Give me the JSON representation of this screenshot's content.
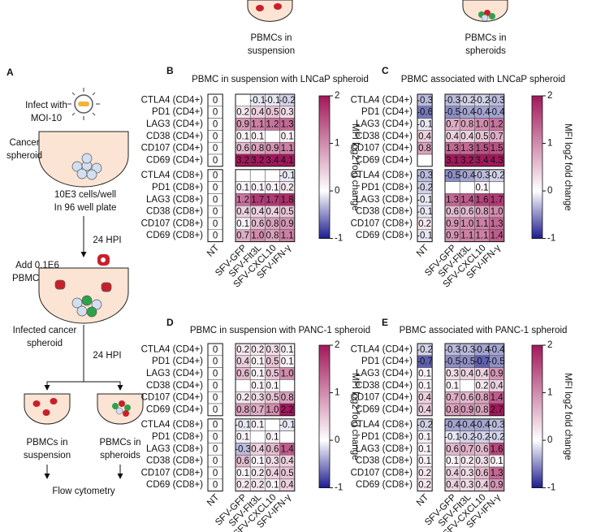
{
  "top_labels": [
    {
      "line1": "PBMCs in",
      "line2": "suspension"
    },
    {
      "line1": "PBMCs in",
      "line2": "spheroids"
    }
  ],
  "panel_a": {
    "letter": "A",
    "infect": [
      "Infect with",
      "MOI-10"
    ],
    "cancer": [
      "Cancer",
      "spheroid"
    ],
    "seed": [
      "10E3 cells/well",
      "In 96 well plate"
    ],
    "hpi1": "24 HPI",
    "add": [
      "Add 0.1E6",
      "PBMCs/well"
    ],
    "infected": [
      "Infected cancer",
      "spheroid"
    ],
    "hpi2": "24 HPI",
    "suspension": [
      "PBMCs in",
      "suspension"
    ],
    "spheroids": [
      "PBMCs in",
      "spheroids"
    ],
    "readout": "Flow cytometry"
  },
  "chart_data": [
    {
      "type": "heatmap",
      "panel": "B",
      "title": "PBMC in suspension with LNCaP spheroid",
      "rows": [
        "CTLA4 (CD4+)",
        "PD1 (CD4+)",
        "LAG3 (CD4+)",
        "CD38 (CD4+)",
        "CD107 (CD4+)",
        "CD69 (CD4+)",
        "CTLA4 (CD8+)",
        "PD1 (CD8+)",
        "LAG3 (CD8+)",
        "CD38 (CD8+)",
        "CD107 (CD8+)",
        "CD69 (CD8+)"
      ],
      "columns": [
        "NT",
        "SFV-GFP",
        "SFV-Flt3L",
        "SFV-CXCL10",
        "SFV-IFN-γ"
      ],
      "values": [
        [
          0,
          null,
          -0.1,
          -0.1,
          -0.2
        ],
        [
          0,
          0.2,
          0.4,
          0.5,
          0.3
        ],
        [
          0,
          0.9,
          1.1,
          1.2,
          1.3
        ],
        [
          0,
          0.1,
          0.1,
          null,
          0.1
        ],
        [
          0,
          0.6,
          0.8,
          0.9,
          1.1
        ],
        [
          0,
          3.2,
          3.2,
          3.4,
          4.1
        ],
        [
          0,
          null,
          null,
          null,
          -0.1
        ],
        [
          0,
          0.1,
          0.1,
          0.1,
          0.2
        ],
        [
          0,
          1.2,
          1.7,
          1.7,
          1.8
        ],
        [
          0,
          0.4,
          0.4,
          0.4,
          0.5
        ],
        [
          0,
          0.1,
          0.6,
          0.8,
          0.9
        ],
        [
          0,
          0.7,
          1.0,
          0.8,
          1.1
        ]
      ],
      "value_labels": [
        [
          "0",
          null,
          "-0.1",
          "-0.1",
          "-0.2"
        ],
        [
          "0",
          "0.2",
          "0.4",
          "0.5",
          "0.3"
        ],
        [
          "0",
          "0.9",
          "1.1",
          "1.2",
          "1.3"
        ],
        [
          "0",
          "0.1",
          "0.1",
          null,
          "0.1"
        ],
        [
          "0",
          "0.6",
          "0.8",
          "0.9",
          "1.1"
        ],
        [
          "0",
          "3.2",
          "3.2",
          "3.4",
          "4.1"
        ],
        [
          "0",
          null,
          null,
          null,
          "-0.1"
        ],
        [
          "0",
          "0.1",
          "0.1",
          "0.1",
          "0.2"
        ],
        [
          "0",
          "1.2",
          "1.7",
          "1.7",
          "1.8"
        ],
        [
          "0",
          "0.4",
          "0.4",
          "0.4",
          "0.5"
        ],
        [
          "0",
          "0.1",
          "0.6",
          "0.8",
          "0.9"
        ],
        [
          "0",
          "0.7",
          "1.0",
          "0.8",
          "1.1"
        ]
      ],
      "colorbar": {
        "label": "MFI log2 fold change",
        "lim": [
          -1,
          2
        ],
        "ticks": [
          -1,
          0,
          1,
          2
        ],
        "stops": [
          -1,
          0,
          2
        ],
        "colors": [
          "#1c1c8e",
          "#ffffff",
          "#a2185b"
        ]
      }
    },
    {
      "type": "heatmap",
      "panel": "C",
      "title": "PBMC associated with LNCaP spheroid",
      "rows": [
        "CTLA4 (CD4+)",
        "PD1 (CD4+)",
        "LAG3 (CD4+)",
        "CD38 (CD4+)",
        "CD107 (CD4+)",
        "CD69 (CD4+)",
        "CTLA4 (CD8+)",
        "PD1 (CD8+)",
        "LAG3 (CD8+)",
        "CD38 (CD8+)",
        "CD107 (CD8+)",
        "CD69 (CD8+)"
      ],
      "columns": [
        "NT",
        "SFV-GFP",
        "SFV-Flt3L",
        "SFV-CXCL10",
        "SFV-IFN-γ"
      ],
      "values": [
        [
          -0.3,
          -0.3,
          -0.2,
          -0.2,
          -0.3
        ],
        [
          -0.6,
          -0.5,
          -0.4,
          -0.4,
          -0.4
        ],
        [
          -0.1,
          0.7,
          0.8,
          1.0,
          1.2
        ],
        [
          0.4,
          0.4,
          0.4,
          0.5,
          0.7
        ],
        [
          0.8,
          1.3,
          1.3,
          1.5,
          1.5
        ],
        [
          null,
          3.1,
          3.2,
          3.4,
          4.3
        ],
        [
          -0.3,
          -0.5,
          -0.4,
          -0.3,
          -0.2
        ],
        [
          -0.2,
          null,
          null,
          0.1,
          null
        ],
        [
          -0.1,
          1.3,
          1.4,
          1.6,
          1.7
        ],
        [
          -0.1,
          0.6,
          0.6,
          0.8,
          1.0
        ],
        [
          0.2,
          0.9,
          1.0,
          1.1,
          1.3
        ],
        [
          -0.1,
          0.9,
          1.1,
          1.1,
          1.4
        ]
      ],
      "value_labels": [
        [
          "-0.3",
          "-0.3",
          "-0.2",
          "-0.2",
          "-0.3"
        ],
        [
          "-0.6",
          "-0.5",
          "-0.4",
          "-0.4",
          "-0.4"
        ],
        [
          "-0.1",
          "0.7",
          "0.8",
          "1.0",
          "1.2"
        ],
        [
          "0.4",
          "0.4",
          "0.4",
          "0.5",
          "0.7"
        ],
        [
          "0.8",
          "1.3",
          "1.3",
          "1.5",
          "1.5"
        ],
        [
          null,
          "3.1",
          "3.2",
          "3.4",
          "4.3"
        ],
        [
          "-0.3",
          "-0.5",
          "-0.4",
          "-0.3",
          "-0.2"
        ],
        [
          "-0.2",
          null,
          null,
          "0.1",
          null
        ],
        [
          "-0.1",
          "1.3",
          "1.4",
          "1.6",
          "1.7"
        ],
        [
          "-0.1",
          "0.6",
          "0.6",
          "0.8",
          "1.0"
        ],
        [
          "0.2",
          "0.9",
          "1.0",
          "1.1",
          "1.3"
        ],
        [
          "-0.1",
          "0.9",
          "1.1",
          "1.1",
          "1.4"
        ]
      ],
      "colorbar": {
        "label": "MFI log2 fold change",
        "lim": [
          -1,
          2
        ],
        "ticks": [
          -1,
          0,
          1,
          2
        ],
        "stops": [
          -1,
          0,
          2
        ],
        "colors": [
          "#1c1c8e",
          "#ffffff",
          "#a2185b"
        ]
      }
    },
    {
      "type": "heatmap",
      "panel": "D",
      "title": "PBMC in suspension with PANC-1 spheroid",
      "rows": [
        "CTLA4 (CD4+)",
        "PD1 (CD4+)",
        "LAG3 (CD4+)",
        "CD38 (CD4+)",
        "CD107 (CD4+)",
        "CD69 (CD4+)",
        "CTLA4 (CD8+)",
        "PD1 (CD8+)",
        "LAG3 (CD8+)",
        "CD38 (CD8+)",
        "CD107 (CD8+)",
        "CD69 (CD8+)"
      ],
      "columns": [
        "NT",
        "SFV-GFP",
        "SFV-Flt3L",
        "SFV-CXCL10",
        "SFV-IFN-γ"
      ],
      "values": [
        [
          0,
          0.2,
          0.2,
          0.3,
          0.1
        ],
        [
          0,
          0.4,
          0.1,
          0.5,
          0.1
        ],
        [
          0,
          0.6,
          0.1,
          0.5,
          1.0
        ],
        [
          0,
          null,
          0.1,
          0.1,
          null
        ],
        [
          0,
          0.2,
          0.3,
          0.5,
          0.8
        ],
        [
          0,
          0.8,
          0.7,
          1.0,
          2.2
        ],
        [
          0,
          -0.1,
          0.1,
          null,
          -0.1
        ],
        [
          0,
          0.1,
          null,
          0.1,
          null
        ],
        [
          0,
          -0.3,
          0.4,
          0.6,
          1.4
        ],
        [
          0,
          0.6,
          0.1,
          0.3,
          0.4
        ],
        [
          0,
          0.1,
          0.2,
          0.4,
          0.5
        ],
        [
          0,
          0.2,
          0.2,
          0.1,
          0.4
        ]
      ],
      "value_labels": [
        [
          "0",
          "0.2",
          "0.2",
          "0.3",
          "0.1"
        ],
        [
          "0",
          "0.4",
          "0.1",
          "0.5",
          "0.1"
        ],
        [
          "0",
          "0.6",
          "0.1",
          "0.5",
          "1.0"
        ],
        [
          "0",
          null,
          "0.1",
          "0.1",
          null
        ],
        [
          "0",
          "0.2",
          "0.3",
          "0.5",
          "0.8"
        ],
        [
          "0",
          "0.8",
          "0.7",
          "1.0",
          "2.2"
        ],
        [
          "0",
          "-0.1",
          "0.1",
          null,
          "-0.1"
        ],
        [
          "0",
          "0.1",
          null,
          "0.1",
          null
        ],
        [
          "0",
          "-0.3",
          "0.4",
          "0.6",
          "1.4"
        ],
        [
          "0",
          "0.6",
          "0.1",
          "0.3",
          "0.4"
        ],
        [
          "0",
          "0.1",
          "0.2",
          "0.4",
          "0.5"
        ],
        [
          "0",
          "0.2",
          "0.2",
          "0.1",
          "0.4"
        ]
      ],
      "colorbar": {
        "label": "MFI log2 fold change",
        "lim": [
          -1,
          2
        ],
        "ticks": [
          -1,
          0,
          1,
          2
        ],
        "stops": [
          -1,
          0,
          2
        ],
        "colors": [
          "#1c1c8e",
          "#ffffff",
          "#a2185b"
        ]
      }
    },
    {
      "type": "heatmap",
      "panel": "E",
      "title": "PBMC associated with PANC-1 spheroid",
      "rows": [
        "CTLA4 (CD4+)",
        "PD1 (CD4+)",
        "LAG3 (CD4+)",
        "CD38 (CD4+)",
        "CD107 (CD4+)",
        "CD69 (CD4+)",
        "CTLA4 (CD8+)",
        "PD1 (CD8+)",
        "LAG3 (CD8+)",
        "CD38 (CD8+)",
        "CD107 (CD8+)",
        "CD69 (CD8+)"
      ],
      "columns": [
        "NT",
        "SFV-GFP",
        "SFV-Flt3L",
        "SFV-CXCL10",
        "SFV-IFN-γ"
      ],
      "values": [
        [
          -0.2,
          -0.3,
          -0.3,
          -0.4,
          -0.4
        ],
        [
          -0.7,
          -0.5,
          -0.5,
          -0.7,
          -0.5
        ],
        [
          0.1,
          0.3,
          0.4,
          0.4,
          0.9
        ],
        [
          0.1,
          0.1,
          null,
          0.2,
          0.4
        ],
        [
          0.4,
          0.7,
          0.6,
          0.8,
          1.4
        ],
        [
          0.4,
          0.8,
          0.9,
          0.8,
          2.7
        ],
        [
          -0.2,
          -0.4,
          -0.4,
          -0.4,
          -0.3
        ],
        [
          0.1,
          -0.1,
          -0.2,
          -0.2,
          -0.2
        ],
        [
          0.1,
          0.6,
          0.7,
          0.6,
          1.6
        ],
        [
          0.1,
          0.1,
          0.2,
          0.3,
          0.1
        ],
        [
          0.2,
          0.4,
          0.3,
          0.6,
          1.3
        ],
        [
          0.2,
          0.4,
          0.3,
          0.4,
          0.9
        ]
      ],
      "value_labels": [
        [
          "-0.2",
          "-0.3",
          "-0.3",
          "-0.4",
          "-0.4"
        ],
        [
          "-0.7",
          "-0.5",
          "-0.5",
          "-0.7",
          "-0.5"
        ],
        [
          "0.1",
          "0.3",
          "0.4",
          "0.4",
          "0.9"
        ],
        [
          "0.1",
          "0.1",
          null,
          "0.2",
          "0.4"
        ],
        [
          "0.4",
          "0.7",
          "0.6",
          "0.8",
          "1.4"
        ],
        [
          "0.4",
          "0.8",
          "0.9",
          "0.8",
          "2.7"
        ],
        [
          "-0.2",
          "-0.4",
          "-0.4",
          "-0.4",
          "-0.3"
        ],
        [
          "0.1",
          "-0.1",
          "-0.2",
          "-0.2",
          "-0.2"
        ],
        [
          "0.1",
          "0.6",
          "0.7",
          "0.6",
          "1.6"
        ],
        [
          "0.1",
          "0.1",
          "0.2",
          "0.3",
          "0.1"
        ],
        [
          "0.2",
          "0.4",
          "0.3",
          "0.6",
          "1.3"
        ],
        [
          "0.2",
          "0.4",
          "0.3",
          "0.4",
          "0.9"
        ]
      ],
      "colorbar": {
        "label": "MFI log2 fold change",
        "lim": [
          -1,
          2
        ],
        "ticks": [
          -1,
          0,
          1,
          2
        ],
        "stops": [
          -1,
          0,
          2
        ],
        "colors": [
          "#1c1c8e",
          "#ffffff",
          "#a2185b"
        ]
      }
    }
  ]
}
